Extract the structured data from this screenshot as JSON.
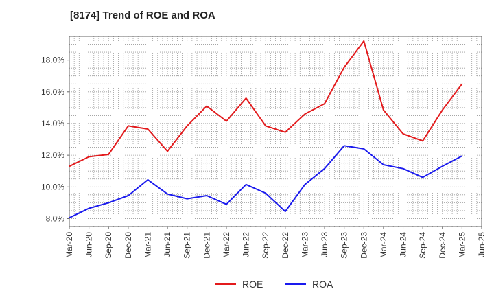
{
  "chart_data": {
    "type": "line",
    "title": "[8174]  Trend of ROE and ROA",
    "xlabel": "",
    "ylabel": "",
    "categories": [
      "Mar-20",
      "Jun-20",
      "Sep-20",
      "Dec-20",
      "Mar-21",
      "Jun-21",
      "Sep-21",
      "Dec-21",
      "Mar-22",
      "Jun-22",
      "Sep-22",
      "Dec-22",
      "Mar-23",
      "Jun-23",
      "Sep-23",
      "Dec-23",
      "Mar-24",
      "Jun-24",
      "Sep-24",
      "Dec-24",
      "Mar-25",
      "Jun-25"
    ],
    "ylim": [
      7.5,
      19.5
    ],
    "yticks": [
      8.0,
      10.0,
      12.0,
      14.0,
      16.0,
      18.0
    ],
    "ytick_labels": [
      "8.0%",
      "10.0%",
      "12.0%",
      "14.0%",
      "16.0%",
      "18.0%"
    ],
    "grid": true,
    "legend_position": "bottom-center",
    "series": [
      {
        "name": "ROE",
        "color": "#e31a1c",
        "values": [
          11.3,
          11.9,
          12.05,
          13.85,
          13.65,
          12.25,
          13.85,
          15.1,
          14.15,
          15.6,
          13.85,
          13.45,
          14.6,
          15.25,
          17.55,
          19.2,
          14.85,
          13.35,
          12.9,
          14.85,
          16.5,
          null
        ]
      },
      {
        "name": "ROA",
        "color": "#1a1aee",
        "values": [
          8.05,
          8.65,
          9.0,
          9.45,
          10.45,
          9.55,
          9.25,
          9.45,
          8.9,
          10.15,
          9.6,
          8.45,
          10.15,
          11.15,
          12.6,
          12.4,
          11.4,
          11.15,
          10.6,
          11.3,
          11.95,
          null
        ]
      }
    ]
  }
}
